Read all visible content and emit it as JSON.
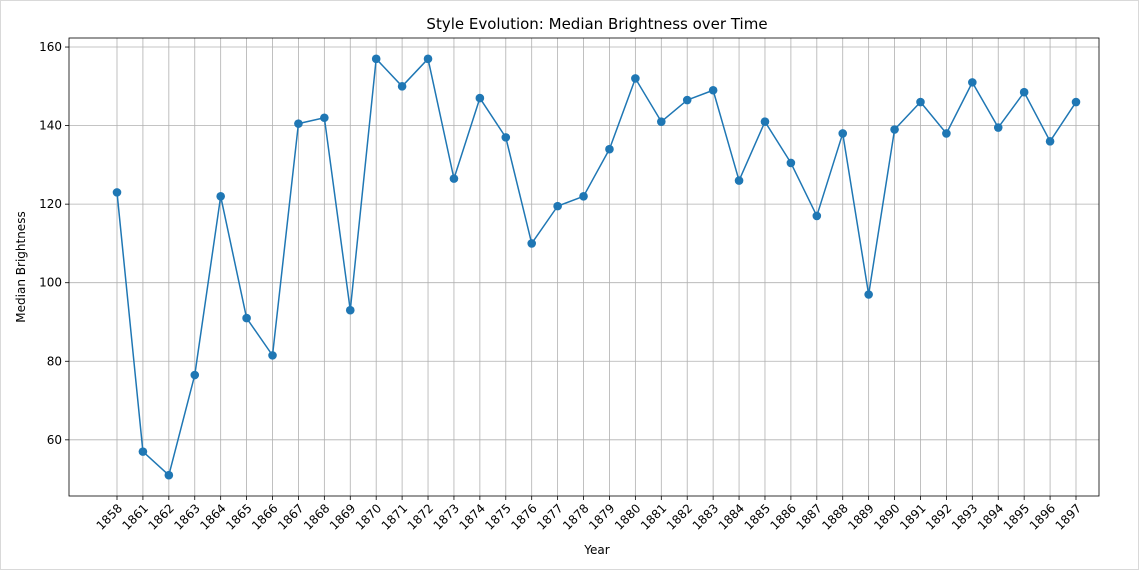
{
  "chart_data": {
    "type": "line",
    "title": "Style Evolution: Median Brightness over Time",
    "xlabel": "Year",
    "ylabel": "Median Brightness",
    "categories": [
      "1858",
      "1861",
      "1862",
      "1863",
      "1864",
      "1865",
      "1866",
      "1867",
      "1868",
      "1869",
      "1870",
      "1871",
      "1872",
      "1873",
      "1874",
      "1875",
      "1876",
      "1877",
      "1878",
      "1879",
      "1880",
      "1881",
      "1882",
      "1883",
      "1884",
      "1885",
      "1886",
      "1887",
      "1888",
      "1889",
      "1890",
      "1891",
      "1892",
      "1893",
      "1894",
      "1895",
      "1896",
      "1897"
    ],
    "series": [
      {
        "values": [
          123,
          57,
          51,
          76.5,
          122,
          91,
          81.5,
          140.5,
          142,
          93,
          157,
          150,
          157,
          126.5,
          147,
          137,
          110,
          119.5,
          122,
          134,
          152,
          141,
          146.5,
          149,
          126,
          141,
          130.5,
          117,
          138,
          97,
          139,
          146,
          138,
          151,
          139.5,
          148.5,
          136,
          146
        ],
        "color": "#1f77b4",
        "marker": "circle"
      }
    ],
    "yticks": [
      60,
      80,
      100,
      120,
      140,
      160
    ],
    "ylim": [
      45.7,
      162.3
    ],
    "grid": true,
    "legend": "none"
  }
}
